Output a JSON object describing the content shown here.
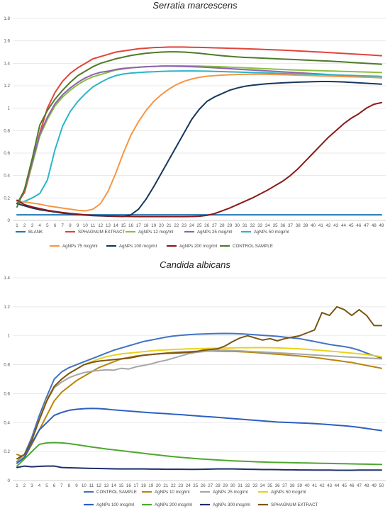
{
  "chart_data": [
    {
      "type": "line",
      "title": "Serratia marcescens",
      "xlabel": "",
      "ylabel": "",
      "ylim": [
        0,
        1.8
      ],
      "yticks": [
        "0",
        "0.2",
        "0.4",
        "0.6",
        "0.8",
        "1",
        "1.2",
        "1.4",
        "1.6",
        "1.8"
      ],
      "x": [
        "1",
        "2",
        "3",
        "4",
        "5",
        "6",
        "7",
        "8",
        "9",
        "10",
        "11",
        "12",
        "13",
        "14",
        "15",
        "16",
        "17",
        "18",
        "19",
        "20",
        "21",
        "22",
        "23",
        "24",
        "25",
        "26",
        "27",
        "28",
        "29",
        "30",
        "31",
        "32",
        "33",
        "34",
        "35",
        "36",
        "37",
        "38",
        "39",
        "40",
        "41",
        "42",
        "43",
        "44",
        "45",
        "46",
        "47",
        "48",
        "49"
      ],
      "grid": "horizontal",
      "legend_position": "bottom",
      "series": [
        {
          "name": "BLANK",
          "color": "#1f77b4",
          "values": [
            0.05,
            0.05,
            0.05,
            0.05,
            0.05,
            0.05,
            0.05,
            0.05,
            0.05,
            0.05,
            0.05,
            0.05,
            0.05,
            0.05,
            0.05,
            0.05,
            0.05,
            0.05,
            0.05,
            0.05,
            0.05,
            0.05,
            0.05,
            0.05,
            0.05,
            0.05,
            0.05,
            0.05,
            0.05,
            0.05,
            0.05,
            0.05,
            0.05,
            0.05,
            0.05,
            0.05,
            0.05,
            0.05,
            0.05,
            0.05,
            0.05,
            0.05,
            0.05,
            0.05,
            0.05,
            0.05,
            0.05,
            0.05,
            0.05
          ]
        },
        {
          "name": "SPHAGNUM EXTRACT",
          "color": "#e0453a",
          "values": [
            0.15,
            0.25,
            0.5,
            0.78,
            1.0,
            1.14,
            1.24,
            1.31,
            1.36,
            1.4,
            1.44,
            1.46,
            1.48,
            1.5,
            1.51,
            1.52,
            1.53,
            1.535,
            1.54,
            1.542,
            1.545,
            1.545,
            1.545,
            1.543,
            1.542,
            1.54,
            1.538,
            1.536,
            1.534,
            1.532,
            1.53,
            1.528,
            1.525,
            1.522,
            1.52,
            1.517,
            1.514,
            1.51,
            1.507,
            1.503,
            1.5,
            1.496,
            1.492,
            1.488,
            1.484,
            1.48,
            1.476,
            1.472,
            1.468
          ]
        },
        {
          "name": "AgNPs 12 mcg/ml",
          "color": "#8bbf3f",
          "values": [
            0.15,
            0.27,
            0.5,
            0.75,
            0.9,
            1.02,
            1.1,
            1.16,
            1.21,
            1.25,
            1.28,
            1.3,
            1.32,
            1.34,
            1.35,
            1.36,
            1.365,
            1.37,
            1.372,
            1.375,
            1.376,
            1.377,
            1.377,
            1.376,
            1.375,
            1.373,
            1.371,
            1.369,
            1.366,
            1.363,
            1.36,
            1.357,
            1.354,
            1.351,
            1.348,
            1.345,
            1.342,
            1.34,
            1.338,
            1.336,
            1.334,
            1.332,
            1.33,
            1.328,
            1.326,
            1.324,
            1.322,
            1.32,
            1.318
          ]
        },
        {
          "name": "AgNPs 25 mcg/ml",
          "color": "#8e63b0",
          "values": [
            0.15,
            0.27,
            0.52,
            0.77,
            0.92,
            1.04,
            1.12,
            1.18,
            1.23,
            1.27,
            1.3,
            1.32,
            1.33,
            1.345,
            1.355,
            1.36,
            1.365,
            1.37,
            1.372,
            1.375,
            1.375,
            1.374,
            1.372,
            1.37,
            1.367,
            1.364,
            1.36,
            1.356,
            1.352,
            1.348,
            1.344,
            1.34,
            1.336,
            1.332,
            1.328,
            1.324,
            1.32,
            1.316,
            1.312,
            1.308,
            1.304,
            1.3,
            1.296,
            1.292,
            1.288,
            1.284,
            1.28,
            1.275,
            1.27
          ]
        },
        {
          "name": "AgNPs 50 mcg/ml",
          "color": "#2bb5c7",
          "values": [
            0.15,
            0.17,
            0.2,
            0.24,
            0.36,
            0.63,
            0.84,
            0.97,
            1.06,
            1.13,
            1.19,
            1.23,
            1.265,
            1.29,
            1.305,
            1.313,
            1.318,
            1.322,
            1.325,
            1.328,
            1.33,
            1.331,
            1.332,
            1.332,
            1.331,
            1.33,
            1.328,
            1.326,
            1.324,
            1.322,
            1.32,
            1.318,
            1.316,
            1.314,
            1.312,
            1.31,
            1.308,
            1.306,
            1.304,
            1.302,
            1.3,
            1.298,
            1.296,
            1.294,
            1.292,
            1.29,
            1.288,
            1.286,
            1.284
          ]
        },
        {
          "name": "AgNPs 75 mcg/ml",
          "color": "#f79646",
          "values": [
            0.17,
            0.165,
            0.155,
            0.145,
            0.13,
            0.12,
            0.11,
            0.1,
            0.09,
            0.085,
            0.1,
            0.15,
            0.26,
            0.42,
            0.6,
            0.76,
            0.88,
            0.98,
            1.06,
            1.12,
            1.17,
            1.21,
            1.24,
            1.26,
            1.275,
            1.285,
            1.29,
            1.295,
            1.298,
            1.3,
            1.302,
            1.303,
            1.303,
            1.302,
            1.3,
            1.298,
            1.296,
            1.294,
            1.292,
            1.29,
            1.288,
            1.286,
            1.284,
            1.282,
            1.28,
            1.278,
            1.276,
            1.274,
            1.272
          ]
        },
        {
          "name": "AgNPs 100 mcg/ml",
          "color": "#17375e",
          "values": [
            0.15,
            0.13,
            0.11,
            0.095,
            0.085,
            0.075,
            0.065,
            0.058,
            0.052,
            0.047,
            0.043,
            0.04,
            0.038,
            0.036,
            0.035,
            0.05,
            0.1,
            0.19,
            0.3,
            0.42,
            0.54,
            0.66,
            0.78,
            0.9,
            0.99,
            1.06,
            1.1,
            1.13,
            1.16,
            1.18,
            1.195,
            1.205,
            1.212,
            1.218,
            1.222,
            1.226,
            1.229,
            1.232,
            1.234,
            1.236,
            1.238,
            1.238,
            1.236,
            1.234,
            1.23,
            1.226,
            1.222,
            1.218,
            1.214
          ]
        },
        {
          "name": "AgNPs 200 mcg/ml",
          "color": "#8b1a1a",
          "values": [
            0.18,
            0.14,
            0.12,
            0.105,
            0.09,
            0.08,
            0.07,
            0.062,
            0.056,
            0.05,
            0.046,
            0.042,
            0.04,
            0.038,
            0.036,
            0.035,
            0.034,
            0.034,
            0.034,
            0.034,
            0.034,
            0.034,
            0.034,
            0.035,
            0.037,
            0.045,
            0.06,
            0.085,
            0.11,
            0.14,
            0.17,
            0.2,
            0.235,
            0.27,
            0.31,
            0.35,
            0.4,
            0.46,
            0.53,
            0.6,
            0.67,
            0.74,
            0.8,
            0.86,
            0.91,
            0.95,
            1.0,
            1.035,
            1.05
          ]
        },
        {
          "name": "CONTROL SAMPLE",
          "color": "#4f7a28",
          "values": [
            0.12,
            0.28,
            0.55,
            0.85,
            0.98,
            1.08,
            1.16,
            1.23,
            1.29,
            1.33,
            1.37,
            1.4,
            1.42,
            1.44,
            1.455,
            1.47,
            1.48,
            1.49,
            1.495,
            1.5,
            1.502,
            1.502,
            1.5,
            1.495,
            1.49,
            1.482,
            1.475,
            1.468,
            1.462,
            1.457,
            1.453,
            1.45,
            1.447,
            1.444,
            1.441,
            1.438,
            1.435,
            1.432,
            1.429,
            1.426,
            1.423,
            1.42,
            1.416,
            1.412,
            1.408,
            1.404,
            1.4,
            1.396,
            1.392
          ]
        }
      ]
    },
    {
      "type": "line",
      "title": "Candida albicans",
      "xlabel": "",
      "ylabel": "",
      "ylim": [
        0,
        1.4
      ],
      "yticks": [
        "0",
        "0.2",
        "0.4",
        "0.6",
        "0.8",
        "1",
        "1.2",
        "1.4"
      ],
      "x": [
        "1",
        "2",
        "3",
        "4",
        "5",
        "6",
        "7",
        "8",
        "9",
        "10",
        "11",
        "12",
        "13",
        "14",
        "15",
        "16",
        "17",
        "18",
        "19",
        "20",
        "21",
        "22",
        "23",
        "24",
        "25",
        "26",
        "27",
        "28",
        "29",
        "30",
        "31",
        "32",
        "33",
        "34",
        "35",
        "36",
        "37",
        "38",
        "39",
        "40",
        "41",
        "42",
        "43",
        "44",
        "45",
        "46",
        "47",
        "48",
        "49",
        "50"
      ],
      "grid": "horizontal",
      "legend_position": "bottom",
      "series": [
        {
          "name": "CONTROL SAMPLE",
          "color": "#4472c4",
          "values": [
            0.13,
            0.18,
            0.3,
            0.45,
            0.58,
            0.7,
            0.75,
            0.78,
            0.8,
            0.82,
            0.84,
            0.86,
            0.88,
            0.9,
            0.915,
            0.93,
            0.945,
            0.96,
            0.97,
            0.98,
            0.99,
            0.998,
            1.003,
            1.007,
            1.01,
            1.012,
            1.014,
            1.015,
            1.016,
            1.015,
            1.013,
            1.01,
            1.007,
            1.003,
            1.0,
            0.996,
            0.99,
            0.985,
            0.98,
            0.97,
            0.96,
            0.95,
            0.94,
            0.932,
            0.925,
            0.915,
            0.9,
            0.88,
            0.862,
            0.845
          ]
        },
        {
          "name": "AgNPs 10 mcg/ml",
          "color": "#b8860b",
          "values": [
            0.18,
            0.16,
            0.25,
            0.35,
            0.45,
            0.55,
            0.61,
            0.65,
            0.69,
            0.72,
            0.75,
            0.78,
            0.8,
            0.82,
            0.84,
            0.85,
            0.86,
            0.865,
            0.87,
            0.875,
            0.88,
            0.885,
            0.888,
            0.89,
            0.892,
            0.893,
            0.894,
            0.894,
            0.893,
            0.892,
            0.89,
            0.887,
            0.884,
            0.88,
            0.876,
            0.872,
            0.868,
            0.864,
            0.86,
            0.855,
            0.85,
            0.843,
            0.836,
            0.829,
            0.822,
            0.815,
            0.805,
            0.795,
            0.785,
            0.775
          ]
        },
        {
          "name": "AgNPs 25 mcg/ml",
          "color": "#a6a6a6",
          "values": [
            0.12,
            0.18,
            0.28,
            0.42,
            0.55,
            0.64,
            0.68,
            0.71,
            0.73,
            0.745,
            0.755,
            0.76,
            0.765,
            0.762,
            0.775,
            0.77,
            0.785,
            0.795,
            0.805,
            0.82,
            0.83,
            0.845,
            0.86,
            0.875,
            0.885,
            0.89,
            0.895,
            0.9,
            0.9,
            0.898,
            0.895,
            0.892,
            0.89,
            0.888,
            0.885,
            0.882,
            0.879,
            0.876,
            0.873,
            0.87,
            0.867,
            0.864,
            0.861,
            0.858,
            0.855,
            0.852,
            0.849,
            0.846,
            0.843,
            0.84
          ]
        },
        {
          "name": "AgNPs 50 mcg/ml",
          "color": "#e8d21c",
          "values": [
            0.12,
            0.17,
            0.28,
            0.42,
            0.56,
            0.65,
            0.7,
            0.74,
            0.77,
            0.8,
            0.82,
            0.84,
            0.855,
            0.865,
            0.875,
            0.88,
            0.885,
            0.89,
            0.895,
            0.9,
            0.902,
            0.905,
            0.907,
            0.909,
            0.91,
            0.912,
            0.913,
            0.914,
            0.915,
            0.916,
            0.917,
            0.917,
            0.918,
            0.918,
            0.917,
            0.916,
            0.914,
            0.912,
            0.91,
            0.906,
            0.902,
            0.898,
            0.894,
            0.89,
            0.885,
            0.88,
            0.875,
            0.87,
            0.862,
            0.855
          ]
        },
        {
          "name": "AgNPs 100 mcg/ml",
          "color": "#2e5fc1",
          "values": [
            0.12,
            0.16,
            0.26,
            0.35,
            0.4,
            0.45,
            0.47,
            0.485,
            0.492,
            0.496,
            0.498,
            0.497,
            0.493,
            0.488,
            0.484,
            0.48,
            0.476,
            0.472,
            0.468,
            0.465,
            0.462,
            0.458,
            0.455,
            0.451,
            0.447,
            0.443,
            0.44,
            0.436,
            0.432,
            0.428,
            0.424,
            0.42,
            0.416,
            0.412,
            0.408,
            0.404,
            0.402,
            0.4,
            0.398,
            0.396,
            0.393,
            0.39,
            0.386,
            0.382,
            0.378,
            0.373,
            0.367,
            0.36,
            0.352,
            0.345
          ]
        },
        {
          "name": "AgNPs 200 mcg/ml",
          "color": "#4ea72e",
          "values": [
            0.1,
            0.15,
            0.2,
            0.25,
            0.26,
            0.262,
            0.26,
            0.255,
            0.248,
            0.24,
            0.232,
            0.225,
            0.218,
            0.212,
            0.206,
            0.2,
            0.194,
            0.188,
            0.182,
            0.176,
            0.17,
            0.165,
            0.16,
            0.156,
            0.152,
            0.148,
            0.145,
            0.142,
            0.139,
            0.136,
            0.134,
            0.132,
            0.13,
            0.128,
            0.126,
            0.125,
            0.124,
            0.123,
            0.122,
            0.121,
            0.12,
            0.119,
            0.118,
            0.117,
            0.116,
            0.115,
            0.114,
            0.113,
            0.112,
            0.111
          ]
        },
        {
          "name": "AgNPs 300 mcg/ml",
          "color": "#1f2f6b",
          "values": [
            0.09,
            0.1,
            0.095,
            0.098,
            0.1,
            0.1,
            0.09,
            0.088,
            0.087,
            0.085,
            0.084,
            0.083,
            0.082,
            0.081,
            0.08,
            0.08,
            0.08,
            0.08,
            0.079,
            0.079,
            0.078,
            0.078,
            0.078,
            0.077,
            0.077,
            0.078,
            0.079,
            0.08,
            0.08,
            0.08,
            0.079,
            0.078,
            0.077,
            0.076,
            0.076,
            0.075,
            0.074,
            0.074,
            0.073,
            0.073,
            0.072,
            0.072,
            0.072,
            0.071,
            0.071,
            0.071,
            0.072,
            0.072,
            0.072,
            0.072
          ]
        },
        {
          "name": "SPHAGNUM EXTRACT",
          "color": "#7a5513",
          "values": [
            0.15,
            0.18,
            0.28,
            0.42,
            0.55,
            0.65,
            0.7,
            0.74,
            0.77,
            0.8,
            0.815,
            0.825,
            0.83,
            0.835,
            0.84,
            0.845,
            0.855,
            0.865,
            0.87,
            0.875,
            0.878,
            0.88,
            0.882,
            0.885,
            0.89,
            0.9,
            0.905,
            0.91,
            0.93,
            0.96,
            0.985,
            1.0,
            0.985,
            0.97,
            0.98,
            0.965,
            0.98,
            0.99,
            1.0,
            1.02,
            1.04,
            1.16,
            1.14,
            1.2,
            1.18,
            1.14,
            1.18,
            1.14,
            1.07,
            1.07
          ]
        }
      ]
    }
  ]
}
